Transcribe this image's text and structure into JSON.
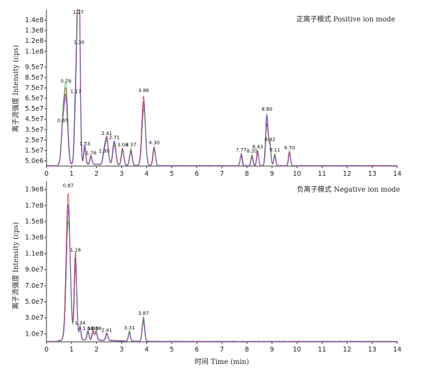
{
  "chart_data": [
    {
      "type": "line",
      "panel": "top",
      "mode_label": "正离子模式 Positive ion mode",
      "ylabel": "离子流强度 Intensity (cps)",
      "xlabel": "",
      "xlim": [
        0,
        14
      ],
      "ylim": [
        0,
        150000000.0
      ],
      "x_ticks": [
        "0",
        "1",
        "2",
        "3",
        "4",
        "5",
        "6",
        "7",
        "8",
        "9",
        "10",
        "11",
        "12",
        "13",
        "14"
      ],
      "y_ticks": [
        {
          "value": 5000000.0,
          "label": "5.0e6"
        },
        {
          "value": 15000000.0,
          "label": "1.5e7"
        },
        {
          "value": 25000000.0,
          "label": "2.5e7"
        },
        {
          "value": 35000000.0,
          "label": "3.5e7"
        },
        {
          "value": 45000000.0,
          "label": "4.5e7"
        },
        {
          "value": 55000000.0,
          "label": "5.5e7"
        },
        {
          "value": 65000000.0,
          "label": "6.5e7"
        },
        {
          "value": 75000000.0,
          "label": "7.5e7"
        },
        {
          "value": 85000000.0,
          "label": "8.5e7"
        },
        {
          "value": 95000000.0,
          "label": "9.5e7"
        },
        {
          "value": 110000000.0,
          "label": "1.1e8"
        },
        {
          "value": 120000000.0,
          "label": "1.2e8"
        },
        {
          "value": 130000000.0,
          "label": "1.3e8"
        },
        {
          "value": 140000000.0,
          "label": "1.4e8"
        }
      ],
      "series_colors": [
        "#1f3fbf",
        "#d42020",
        "#3fae3f",
        "#9a3fbf"
      ],
      "peaks": [
        {
          "rt": 0.65,
          "label": "0.65",
          "height": 40000000.0,
          "width": 0.06
        },
        {
          "rt": 0.78,
          "label": "0.78",
          "height": 78000000.0,
          "width": 0.07
        },
        {
          "rt": 1.17,
          "label": "1.17",
          "height": 68000000.0,
          "width": 0.05
        },
        {
          "rt": 1.27,
          "label": "1.27",
          "height": 148000000.0,
          "width": 0.05
        },
        {
          "rt": 1.3,
          "label": "1.30",
          "height": 115000000.0,
          "width": 0.05
        },
        {
          "rt": 1.53,
          "label": "1.53",
          "height": 18000000.0,
          "width": 0.04
        },
        {
          "rt": 1.78,
          "label": "1.78",
          "height": 9000000.0,
          "width": 0.04
        },
        {
          "rt": 2.3,
          "label": "2.30",
          "height": 11000000.0,
          "width": 0.05
        },
        {
          "rt": 2.41,
          "label": "2.41",
          "height": 28000000.0,
          "width": 0.06
        },
        {
          "rt": 2.71,
          "label": "2.71",
          "height": 24000000.0,
          "width": 0.06
        },
        {
          "rt": 3.04,
          "label": "3.04",
          "height": 17000000.0,
          "width": 0.05
        },
        {
          "rt": 3.37,
          "label": "3.37",
          "height": 17000000.0,
          "width": 0.05
        },
        {
          "rt": 3.88,
          "label": "3.88",
          "height": 69000000.0,
          "width": 0.07
        },
        {
          "rt": 4.3,
          "label": "4.30",
          "height": 19000000.0,
          "width": 0.05
        },
        {
          "rt": 7.77,
          "label": "7.77",
          "height": 12000000.0,
          "width": 0.04
        },
        {
          "rt": 8.2,
          "label": "8.20",
          "height": 11000000.0,
          "width": 0.04
        },
        {
          "rt": 8.43,
          "label": "8.43",
          "height": 15000000.0,
          "width": 0.04
        },
        {
          "rt": 8.8,
          "label": "8.80",
          "height": 51000000.0,
          "width": 0.05
        },
        {
          "rt": 8.92,
          "label": "8.92",
          "height": 22000000.0,
          "width": 0.04
        },
        {
          "rt": 9.11,
          "label": "9.11",
          "height": 12000000.0,
          "width": 0.04
        },
        {
          "rt": 9.7,
          "label": "9.70",
          "height": 14000000.0,
          "width": 0.04
        }
      ]
    },
    {
      "type": "line",
      "panel": "bottom",
      "mode_label": "负离子模式 Negative ion mode",
      "ylabel": "离子流强度 Intensity (cps)",
      "xlabel": "时间 Time (min)",
      "xlim": [
        0,
        14
      ],
      "ylim": [
        0,
        200000000.0
      ],
      "x_ticks": [
        "0",
        "1",
        "2",
        "3",
        "4",
        "5",
        "6",
        "7",
        "8",
        "9",
        "10",
        "11",
        "12",
        "13",
        "14"
      ],
      "y_ticks": [
        {
          "value": 10000000.0,
          "label": "1.0e7"
        },
        {
          "value": 30000000.0,
          "label": "3.0e7"
        },
        {
          "value": 50000000.0,
          "label": "5.0e7"
        },
        {
          "value": 70000000.0,
          "label": "7.0e7"
        },
        {
          "value": 90000000.0,
          "label": "9.0e7"
        },
        {
          "value": 110000000.0,
          "label": "1.1e8"
        },
        {
          "value": 130000000.0,
          "label": "1.3e8"
        },
        {
          "value": 150000000.0,
          "label": "1.5e8"
        },
        {
          "value": 170000000.0,
          "label": "1.7e8"
        },
        {
          "value": 190000000.0,
          "label": "1.9e8"
        }
      ],
      "series_colors": [
        "#1f3fbf",
        "#d42020",
        "#3fae3f",
        "#9a3fbf"
      ],
      "peaks": [
        {
          "rt": 0.87,
          "label": "0.87",
          "height": 190000000.0,
          "width": 0.08
        },
        {
          "rt": 1.16,
          "label": "1.16",
          "height": 110000000.0,
          "width": 0.05
        },
        {
          "rt": 1.34,
          "label": "1.34",
          "height": 19000000.0,
          "width": 0.04
        },
        {
          "rt": 1.66,
          "label": "1.66",
          "height": 12000000.0,
          "width": 0.04
        },
        {
          "rt": 1.86,
          "label": "1.86",
          "height": 12000000.0,
          "width": 0.04
        },
        {
          "rt": 1.98,
          "label": "1.98",
          "height": 12000000.0,
          "width": 0.04
        },
        {
          "rt": 2.41,
          "label": "2.41",
          "height": 10000000.0,
          "width": 0.04
        },
        {
          "rt": 3.31,
          "label": "3.31",
          "height": 13000000.0,
          "width": 0.04
        },
        {
          "rt": 3.87,
          "label": "3.87",
          "height": 31000000.0,
          "width": 0.05
        }
      ]
    }
  ]
}
